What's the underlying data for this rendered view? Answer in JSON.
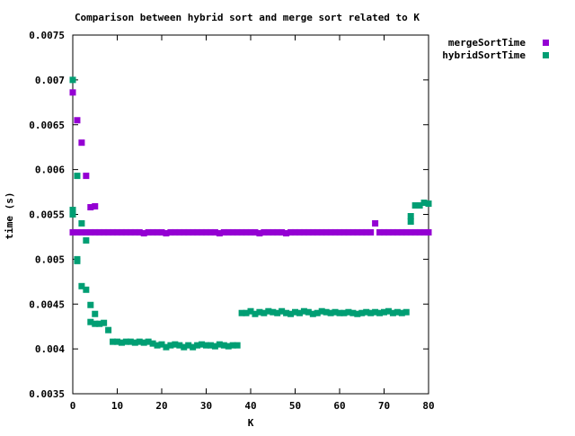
{
  "chart_data": {
    "type": "scatter",
    "title": "Comparison between hybrid sort and merge sort related to K",
    "xlabel": "K",
    "ylabel": "time (s)",
    "xlim": [
      0,
      80
    ],
    "ylim": [
      0.0035,
      0.0075
    ],
    "xticks": [
      0,
      10,
      20,
      30,
      40,
      50,
      60,
      70,
      80
    ],
    "xtick_labels": [
      "0",
      "10",
      "20",
      "30",
      "40",
      "50",
      "60",
      "70",
      "80"
    ],
    "yticks": [
      0.0035,
      0.004,
      0.0045,
      0.005,
      0.0055,
      0.006,
      0.0065,
      0.007,
      0.0075
    ],
    "ytick_labels": [
      "0.0035",
      "0.004",
      "0.0045",
      "0.005",
      "0.0055",
      "0.006",
      "0.0065",
      "0.007",
      "0.0075"
    ],
    "grid": false,
    "legend_position": "outside-top-right",
    "series": [
      {
        "name": "mergeSortTime",
        "color": "#9400d3",
        "points": [
          [
            0,
            0.00686
          ],
          [
            1,
            0.00655
          ],
          [
            2,
            0.0063
          ],
          [
            3,
            0.00593
          ],
          [
            4,
            0.00558
          ],
          [
            5,
            0.00559
          ],
          [
            0,
            0.0053
          ],
          [
            1,
            0.0053
          ],
          [
            2,
            0.0053
          ],
          [
            3,
            0.0053
          ],
          [
            4,
            0.0053
          ],
          [
            5,
            0.0053
          ],
          [
            6,
            0.0053
          ],
          [
            7,
            0.0053
          ],
          [
            8,
            0.0053
          ],
          [
            9,
            0.0053
          ],
          [
            10,
            0.0053
          ],
          [
            11,
            0.0053
          ],
          [
            12,
            0.0053
          ],
          [
            13,
            0.0053
          ],
          [
            14,
            0.0053
          ],
          [
            15,
            0.0053
          ],
          [
            16,
            0.00529
          ],
          [
            17,
            0.0053
          ],
          [
            18,
            0.0053
          ],
          [
            19,
            0.0053
          ],
          [
            20,
            0.0053
          ],
          [
            21,
            0.00529
          ],
          [
            22,
            0.0053
          ],
          [
            23,
            0.0053
          ],
          [
            24,
            0.0053
          ],
          [
            25,
            0.0053
          ],
          [
            26,
            0.0053
          ],
          [
            27,
            0.0053
          ],
          [
            28,
            0.0053
          ],
          [
            29,
            0.0053
          ],
          [
            30,
            0.0053
          ],
          [
            31,
            0.0053
          ],
          [
            32,
            0.0053
          ],
          [
            33,
            0.00529
          ],
          [
            34,
            0.0053
          ],
          [
            35,
            0.0053
          ],
          [
            36,
            0.0053
          ],
          [
            37,
            0.0053
          ],
          [
            38,
            0.0053
          ],
          [
            39,
            0.0053
          ],
          [
            40,
            0.0053
          ],
          [
            41,
            0.0053
          ],
          [
            42,
            0.00529
          ],
          [
            43,
            0.0053
          ],
          [
            44,
            0.0053
          ],
          [
            45,
            0.0053
          ],
          [
            46,
            0.0053
          ],
          [
            47,
            0.0053
          ],
          [
            48,
            0.00529
          ],
          [
            49,
            0.0053
          ],
          [
            50,
            0.0053
          ],
          [
            51,
            0.0053
          ],
          [
            52,
            0.0053
          ],
          [
            53,
            0.0053
          ],
          [
            54,
            0.0053
          ],
          [
            55,
            0.0053
          ],
          [
            56,
            0.0053
          ],
          [
            57,
            0.0053
          ],
          [
            58,
            0.0053
          ],
          [
            59,
            0.0053
          ],
          [
            60,
            0.0053
          ],
          [
            61,
            0.0053
          ],
          [
            62,
            0.0053
          ],
          [
            63,
            0.0053
          ],
          [
            64,
            0.0053
          ],
          [
            65,
            0.0053
          ],
          [
            66,
            0.0053
          ],
          [
            67,
            0.0053
          ],
          [
            68,
            0.0054
          ],
          [
            69,
            0.0053
          ],
          [
            70,
            0.0053
          ],
          [
            71,
            0.0053
          ],
          [
            72,
            0.0053
          ],
          [
            73,
            0.0053
          ],
          [
            74,
            0.0053
          ],
          [
            75,
            0.0053
          ],
          [
            76,
            0.0053
          ],
          [
            77,
            0.0053
          ],
          [
            78,
            0.0053
          ],
          [
            79,
            0.0053
          ],
          [
            80,
            0.0053
          ]
        ]
      },
      {
        "name": "hybridSortTime",
        "color": "#009e73",
        "points": [
          [
            0,
            0.007
          ],
          [
            0,
            0.00555
          ],
          [
            0,
            0.0055
          ],
          [
            1,
            0.00593
          ],
          [
            1,
            0.00498
          ],
          [
            1,
            0.005
          ],
          [
            2,
            0.0054
          ],
          [
            2,
            0.0047
          ],
          [
            3,
            0.00521
          ],
          [
            3,
            0.00466
          ],
          [
            4,
            0.00449
          ],
          [
            4,
            0.0043
          ],
          [
            5,
            0.00439
          ],
          [
            5,
            0.00428
          ],
          [
            6,
            0.00428
          ],
          [
            7,
            0.00429
          ],
          [
            8,
            0.00421
          ],
          [
            9,
            0.00408
          ],
          [
            10,
            0.00408
          ],
          [
            11,
            0.00407
          ],
          [
            12,
            0.00408
          ],
          [
            13,
            0.00408
          ],
          [
            14,
            0.00407
          ],
          [
            15,
            0.00408
          ],
          [
            16,
            0.00407
          ],
          [
            17,
            0.00408
          ],
          [
            18,
            0.00406
          ],
          [
            19,
            0.00404
          ],
          [
            20,
            0.00405
          ],
          [
            21,
            0.00402
          ],
          [
            22,
            0.00404
          ],
          [
            23,
            0.00405
          ],
          [
            24,
            0.00404
          ],
          [
            25,
            0.00402
          ],
          [
            26,
            0.00404
          ],
          [
            27,
            0.00402
          ],
          [
            28,
            0.00404
          ],
          [
            29,
            0.00405
          ],
          [
            30,
            0.00404
          ],
          [
            31,
            0.00404
          ],
          [
            32,
            0.00403
          ],
          [
            33,
            0.00405
          ],
          [
            34,
            0.00404
          ],
          [
            35,
            0.00403
          ],
          [
            36,
            0.00404
          ],
          [
            37,
            0.00404
          ],
          [
            38,
            0.0044
          ],
          [
            39,
            0.0044
          ],
          [
            40,
            0.00442
          ],
          [
            41,
            0.00439
          ],
          [
            42,
            0.00441
          ],
          [
            43,
            0.0044
          ],
          [
            44,
            0.00442
          ],
          [
            45,
            0.00441
          ],
          [
            46,
            0.0044
          ],
          [
            47,
            0.00442
          ],
          [
            48,
            0.0044
          ],
          [
            49,
            0.00439
          ],
          [
            50,
            0.00441
          ],
          [
            51,
            0.0044
          ],
          [
            52,
            0.00442
          ],
          [
            53,
            0.00441
          ],
          [
            54,
            0.00439
          ],
          [
            55,
            0.0044
          ],
          [
            56,
            0.00442
          ],
          [
            57,
            0.00441
          ],
          [
            58,
            0.0044
          ],
          [
            59,
            0.00441
          ],
          [
            60,
            0.0044
          ],
          [
            61,
            0.0044
          ],
          [
            62,
            0.00441
          ],
          [
            63,
            0.0044
          ],
          [
            64,
            0.00439
          ],
          [
            65,
            0.0044
          ],
          [
            66,
            0.00441
          ],
          [
            67,
            0.0044
          ],
          [
            68,
            0.00441
          ],
          [
            69,
            0.0044
          ],
          [
            70,
            0.00441
          ],
          [
            71,
            0.00442
          ],
          [
            72,
            0.0044
          ],
          [
            73,
            0.00441
          ],
          [
            74,
            0.0044
          ],
          [
            75,
            0.00441
          ],
          [
            76,
            0.00542
          ],
          [
            76,
            0.00548
          ],
          [
            77,
            0.0056
          ],
          [
            78,
            0.0056
          ],
          [
            79,
            0.00563
          ],
          [
            80,
            0.00562
          ]
        ]
      }
    ]
  }
}
